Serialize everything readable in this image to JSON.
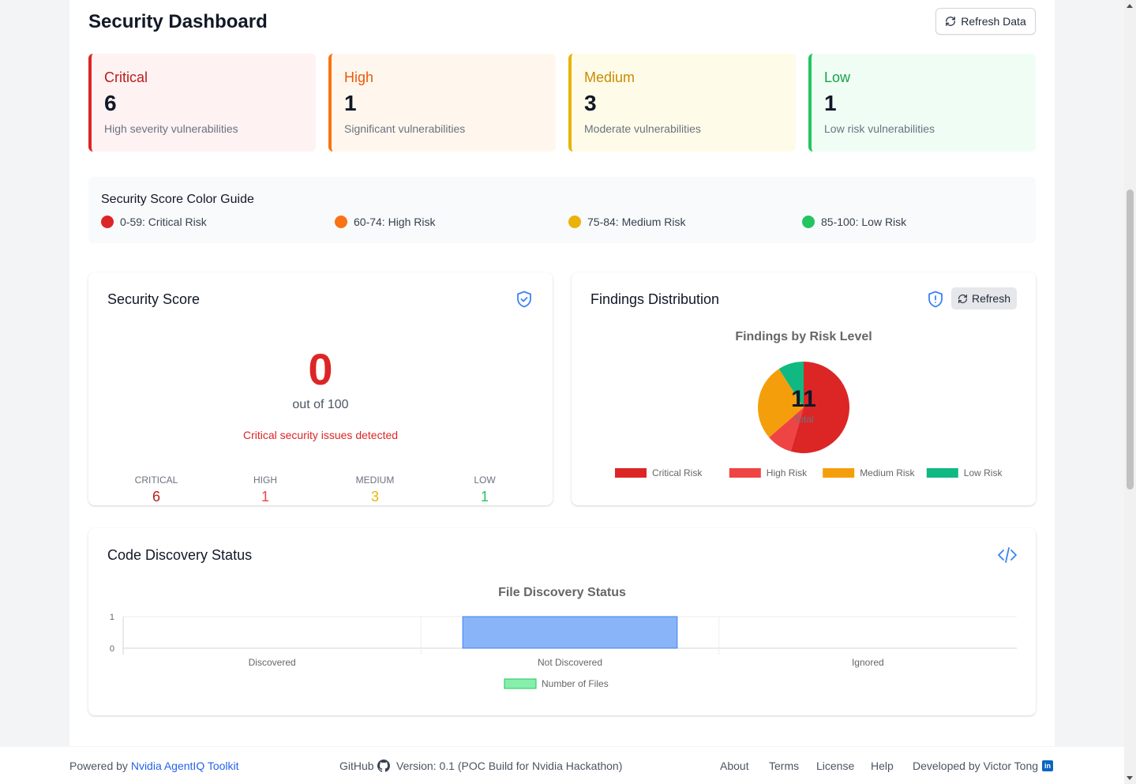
{
  "header": {
    "title": "Security Dashboard",
    "refresh_label": "Refresh Data"
  },
  "severity_cards": [
    {
      "label": "Critical",
      "count": "6",
      "desc": "High severity vulnerabilities",
      "color": "#dc2626"
    },
    {
      "label": "High",
      "count": "1",
      "desc": "Significant vulnerabilities",
      "color": "#f97316"
    },
    {
      "label": "Medium",
      "count": "3",
      "desc": "Moderate vulnerabilities",
      "color": "#eab308"
    },
    {
      "label": "Low",
      "count": "1",
      "desc": "Low risk vulnerabilities",
      "color": "#22c55e"
    }
  ],
  "guide": {
    "title": "Security Score Color Guide",
    "items": [
      {
        "label": "0-59: Critical Risk",
        "color": "#dc2626"
      },
      {
        "label": "60-74: High Risk",
        "color": "#f97316"
      },
      {
        "label": "75-84: Medium Risk",
        "color": "#eab308"
      },
      {
        "label": "85-100: Low Risk",
        "color": "#22c55e"
      }
    ]
  },
  "score_card": {
    "title": "Security Score",
    "icon": "shield-check-icon",
    "score": "0",
    "out_of": "out of 100",
    "status": "Critical security issues detected",
    "breakdown": [
      {
        "label": "CRITICAL",
        "value": "6",
        "color": "#b91c1c"
      },
      {
        "label": "HIGH",
        "value": "1",
        "color": "#ef4444"
      },
      {
        "label": "MEDIUM",
        "value": "3",
        "color": "#eab308"
      },
      {
        "label": "LOW",
        "value": "1",
        "color": "#22c55e"
      }
    ]
  },
  "distribution_card": {
    "title": "Findings Distribution",
    "icon": "shield-alert-icon",
    "refresh_label": "Refresh",
    "center_value": "11",
    "center_label": "Total"
  },
  "code_card": {
    "title": "Code Discovery Status",
    "icon": "code-icon"
  },
  "chart_data": [
    {
      "type": "pie",
      "title": "Findings by Risk Level",
      "categories": [
        "Critical Risk",
        "High Risk",
        "Medium Risk",
        "Low Risk"
      ],
      "values": [
        6,
        1,
        3,
        1
      ],
      "colors": [
        "#dc2626",
        "#ef4444",
        "#f59e0b",
        "#10b981"
      ],
      "legend": "bottom"
    },
    {
      "type": "bar",
      "title": "File Discovery Status",
      "categories": [
        "Discovered",
        "Not Discovered",
        "Ignored"
      ],
      "series": [
        {
          "name": "Number of Files",
          "values": [
            0,
            1,
            0
          ]
        }
      ],
      "ylim": [
        0,
        1
      ],
      "yticks": [
        "0",
        "1"
      ],
      "bar_color": "#8ab4f8",
      "legend_color": "#86efac",
      "legend": "bottom"
    }
  ],
  "footer": {
    "powered_prefix": "Powered by",
    "powered_link": "Nvidia AgentIQ Toolkit",
    "github": "GitHub",
    "version": "Version: 0.1 (POC Build for Nvidia Hackathon)",
    "links": [
      "About",
      "Terms",
      "License",
      "Help"
    ],
    "developer": "Developed by Victor Tong"
  }
}
